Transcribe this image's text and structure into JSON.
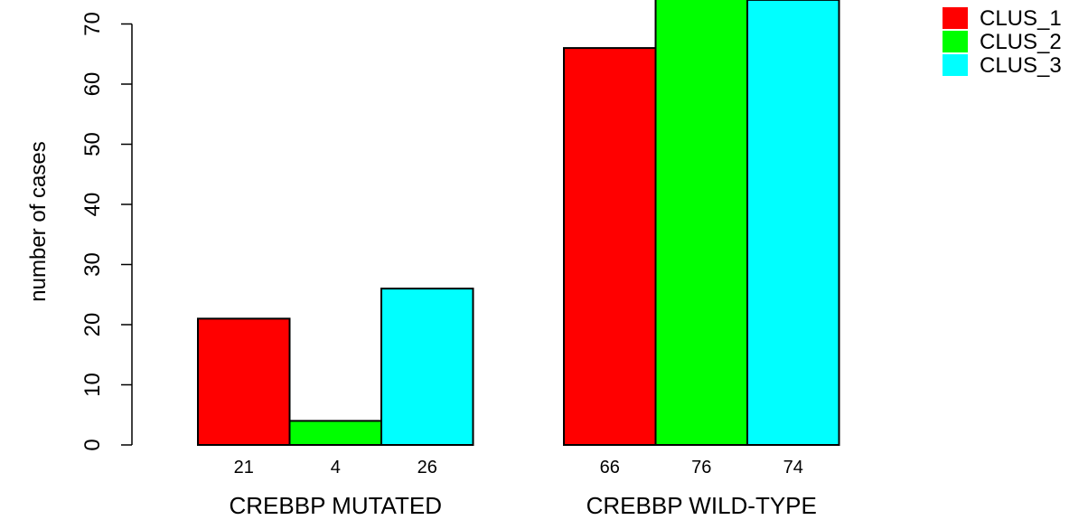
{
  "chart_data": {
    "type": "bar",
    "groups": [
      "CREBBP MUTATED",
      "CREBBP WILD-TYPE"
    ],
    "series": [
      {
        "name": "CLUS_1",
        "color": "#ff0000",
        "values": [
          21,
          66
        ]
      },
      {
        "name": "CLUS_2",
        "color": "#00ff00",
        "values": [
          4,
          76
        ]
      },
      {
        "name": "CLUS_3",
        "color": "#00ffff",
        "values": [
          26,
          74
        ]
      }
    ],
    "ylabel": "number of cases",
    "yticks": [
      0,
      10,
      20,
      30,
      40,
      50,
      60,
      70
    ],
    "ylim": [
      0,
      75
    ],
    "legend_position": "top-right",
    "grid": false
  }
}
